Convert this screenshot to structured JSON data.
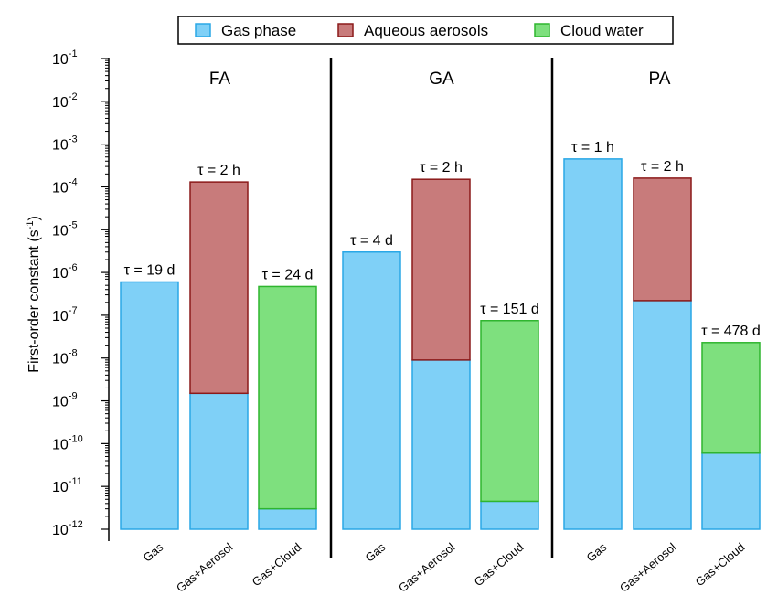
{
  "chart_data": {
    "type": "bar",
    "stacked": true,
    "yscale": "log",
    "ylim": [
      1e-12,
      0.1
    ],
    "ylabel": "First-order constant (s",
    "ylabel_sup": "-1",
    "ylabel_close": ")",
    "y_ticks": [
      {
        "base": "10",
        "exp": "-12",
        "value": 1e-12
      },
      {
        "base": "10",
        "exp": "-11",
        "value": 1e-11
      },
      {
        "base": "10",
        "exp": "-10",
        "value": 1e-10
      },
      {
        "base": "10",
        "exp": "-9",
        "value": 1e-09
      },
      {
        "base": "10",
        "exp": "-8",
        "value": 1e-08
      },
      {
        "base": "10",
        "exp": "-7",
        "value": 1e-07
      },
      {
        "base": "10",
        "exp": "-6",
        "value": 1e-06
      },
      {
        "base": "10",
        "exp": "-5",
        "value": 1e-05
      },
      {
        "base": "10",
        "exp": "-4",
        "value": 0.0001
      },
      {
        "base": "10",
        "exp": "-3",
        "value": 0.001
      },
      {
        "base": "10",
        "exp": "-2",
        "value": 0.01
      },
      {
        "base": "10",
        "exp": "-1",
        "value": 0.1
      }
    ],
    "legend": {
      "placement": "top-center",
      "entries": [
        {
          "name": "Gas phase",
          "color": "#7fd0f7",
          "edge": "#2aa7e6"
        },
        {
          "name": "Aqueous aerosols",
          "color": "#c87b7b",
          "edge": "#8b1a1a"
        },
        {
          "name": "Cloud water",
          "color": "#7ee07e",
          "edge": "#2fb52f"
        }
      ]
    },
    "panels": [
      {
        "title": "FA",
        "bars": [
          {
            "category": "Gas",
            "tau": "τ = 19 d",
            "gas": 6e-07,
            "aerosol": null,
            "cloud": null
          },
          {
            "category": "Gas+Aerosol",
            "tau": "τ = 2 h",
            "gas": 1.5e-09,
            "aerosol": 0.00013,
            "cloud": null
          },
          {
            "category": "Gas+Cloud",
            "tau": "τ = 24 d",
            "gas": 3e-12,
            "aerosol": null,
            "cloud": 4.7e-07
          }
        ]
      },
      {
        "title": "GA",
        "bars": [
          {
            "category": "Gas",
            "tau": "τ = 4 d",
            "gas": 3e-06,
            "aerosol": null,
            "cloud": null
          },
          {
            "category": "Gas+Aerosol",
            "tau": "τ = 2 h",
            "gas": 9e-09,
            "aerosol": 0.00015,
            "cloud": null
          },
          {
            "category": "Gas+Cloud",
            "tau": "τ = 151 d",
            "gas": 4.5e-12,
            "aerosol": null,
            "cloud": 7.5e-08
          }
        ]
      },
      {
        "title": "PA",
        "bars": [
          {
            "category": "Gas",
            "tau": "τ = 1 h",
            "gas": 0.00045,
            "aerosol": null,
            "cloud": null
          },
          {
            "category": "Gas+Aerosol",
            "tau": "τ = 2 h",
            "gas": 2.2e-07,
            "aerosol": 0.00016,
            "cloud": null
          },
          {
            "category": "Gas+Cloud",
            "tau": "τ = 478 d",
            "gas": 6e-11,
            "aerosol": null,
            "cloud": 2.3e-08
          }
        ]
      }
    ]
  }
}
